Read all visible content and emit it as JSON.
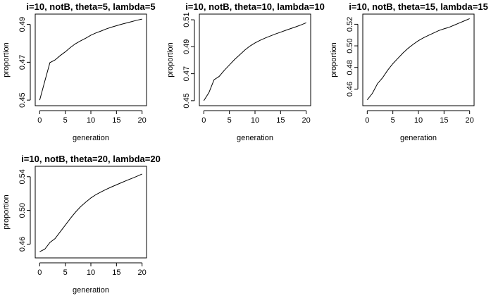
{
  "chart_data": [
    {
      "type": "line",
      "title": "i=10, notB, theta=5, lambda=5",
      "xlabel": "generation",
      "ylabel": "proportion",
      "xlim": [
        0,
        20
      ],
      "ylim": [
        0.449,
        0.4935
      ],
      "xticks": [
        0,
        5,
        10,
        15,
        20
      ],
      "yticks": [
        0.45,
        0.47,
        0.49
      ],
      "ytick_labels": [
        "0.45",
        "0.47",
        "0.49"
      ],
      "x": [
        0,
        1,
        2,
        3,
        4,
        5,
        6,
        7,
        8,
        9,
        10,
        11,
        12,
        13,
        14,
        15,
        16,
        17,
        18,
        19,
        20
      ],
      "y": [
        0.45,
        0.46,
        0.4698,
        0.4712,
        0.4735,
        0.4755,
        0.4778,
        0.4798,
        0.4813,
        0.4827,
        0.4843,
        0.4855,
        0.4865,
        0.4876,
        0.4885,
        0.4893,
        0.4901,
        0.4908,
        0.4915,
        0.4922,
        0.4928
      ],
      "grid": false
    },
    {
      "type": "line",
      "title": "i=10, notB, theta=10, lambda=10",
      "xlabel": "generation",
      "ylabel": "proportion",
      "xlim": [
        0,
        20
      ],
      "ylim": [
        0.449,
        0.5115
      ],
      "xticks": [
        0,
        5,
        10,
        15,
        20
      ],
      "yticks": [
        0.45,
        0.47,
        0.49,
        0.51
      ],
      "ytick_labels": [
        "0.45",
        "0.47",
        "0.49",
        "0.51"
      ],
      "x": [
        0,
        1,
        2,
        3,
        4,
        5,
        6,
        7,
        8,
        9,
        10,
        11,
        12,
        13,
        14,
        15,
        16,
        17,
        18,
        19,
        20
      ],
      "y": [
        0.45,
        0.456,
        0.4655,
        0.468,
        0.4725,
        0.4765,
        0.4805,
        0.484,
        0.4875,
        0.4905,
        0.4928,
        0.4948,
        0.4965,
        0.498,
        0.4995,
        0.5008,
        0.5022,
        0.5035,
        0.5048,
        0.5062,
        0.5078
      ],
      "grid": false
    },
    {
      "type": "line",
      "title": "i=10, notB, theta=15, lambda=15",
      "xlabel": "generation",
      "ylabel": "proportion",
      "xlim": [
        0,
        20
      ],
      "ylim": [
        0.448,
        0.526
      ],
      "xticks": [
        0,
        5,
        10,
        15,
        20
      ],
      "yticks": [
        0.46,
        0.48,
        0.5,
        0.52
      ],
      "ytick_labels": [
        "0.46",
        "0.48",
        "0.50",
        "0.52"
      ],
      "x": [
        0,
        1,
        2,
        3,
        4,
        5,
        6,
        7,
        8,
        9,
        10,
        11,
        12,
        13,
        14,
        15,
        16,
        17,
        18,
        19,
        20
      ],
      "y": [
        0.45,
        0.456,
        0.465,
        0.4705,
        0.4775,
        0.4835,
        0.4885,
        0.4935,
        0.4978,
        0.5015,
        0.5048,
        0.5075,
        0.5098,
        0.512,
        0.5142,
        0.5158,
        0.5172,
        0.5192,
        0.5212,
        0.5232,
        0.5252
      ],
      "grid": false
    },
    {
      "type": "line",
      "title": "i=10, notB, theta=20, lambda=20",
      "xlabel": "generation",
      "ylabel": "proportion",
      "xlim": [
        0,
        20
      ],
      "ylim": [
        0.448,
        0.548
      ],
      "xticks": [
        0,
        5,
        10,
        15,
        20
      ],
      "yticks": [
        0.46,
        0.5,
        0.54
      ],
      "ytick_labels": [
        "0.46",
        "0.50",
        "0.54"
      ],
      "x": [
        0,
        1,
        2,
        3,
        4,
        5,
        6,
        7,
        8,
        9,
        10,
        11,
        12,
        13,
        14,
        15,
        16,
        17,
        18,
        19,
        20
      ],
      "y": [
        0.451,
        0.454,
        0.462,
        0.4665,
        0.4745,
        0.4825,
        0.4905,
        0.498,
        0.5045,
        0.5098,
        0.5148,
        0.5188,
        0.522,
        0.525,
        0.5278,
        0.5304,
        0.533,
        0.5356,
        0.538,
        0.5405,
        0.5432
      ],
      "grid": false
    }
  ]
}
